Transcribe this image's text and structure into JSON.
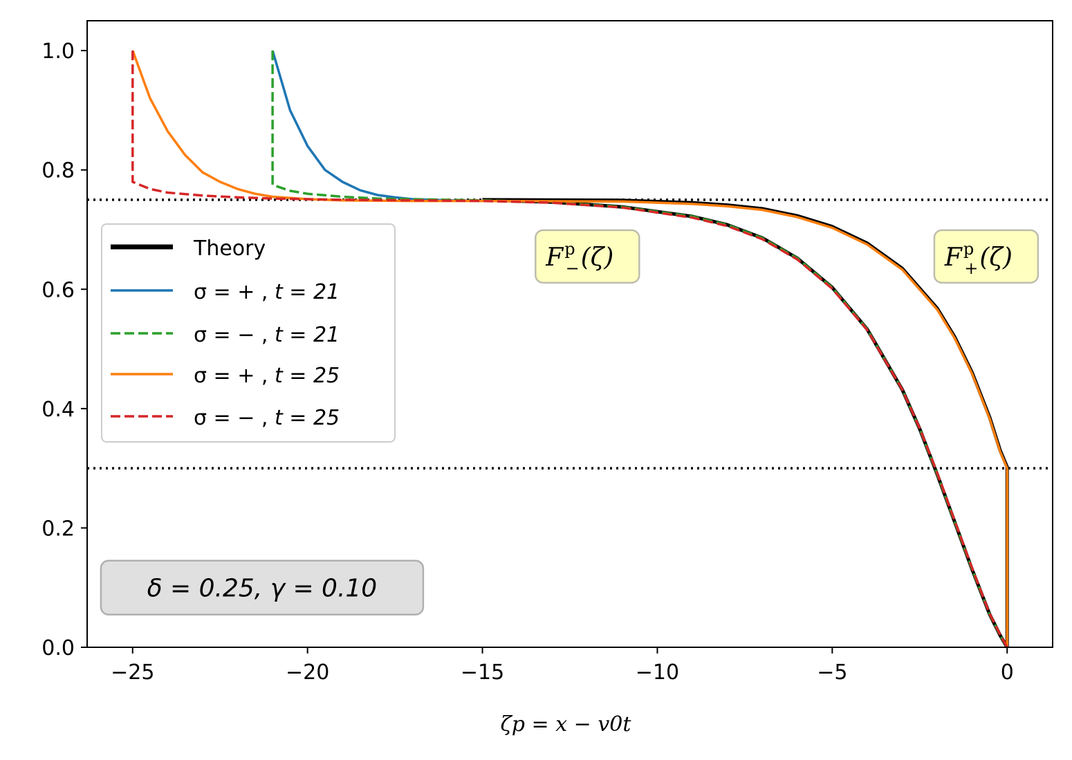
{
  "chart_data": {
    "type": "line",
    "title": "",
    "xlabel": "ζp = x − v0t",
    "ylabel": "",
    "xlim": [
      -26.3,
      1.3
    ],
    "ylim": [
      0.0,
      1.05
    ],
    "xticks": [
      -25,
      -20,
      -15,
      -10,
      -5,
      0
    ],
    "xtick_labels": [
      "−25",
      "−20",
      "−15",
      "−10",
      "−5",
      "0"
    ],
    "yticks": [
      0.0,
      0.2,
      0.4,
      0.6,
      0.8,
      1.0
    ],
    "ytick_labels": [
      "0.0",
      "0.2",
      "0.4",
      "0.6",
      "0.8",
      "1.0"
    ],
    "grid": false,
    "legend_position": "center-left",
    "hlines": [
      {
        "y": 0.75,
        "style": "dotted",
        "color": "#000000"
      },
      {
        "y": 0.3,
        "style": "dotted",
        "color": "#000000"
      }
    ],
    "series": [
      {
        "name": "Theory",
        "legend_label": "Theory",
        "color": "#000000",
        "dash": "solid",
        "weight": "thick",
        "segments": [
          {
            "x": [
              -15,
              -13,
              -11,
              -9,
              -8,
              -7,
              -6,
              -5,
              -4,
              -3,
              -2.5,
              -2,
              -1.5,
              -1,
              -0.5,
              -0.2,
              0
            ],
            "y": [
              0.75,
              0.746,
              0.738,
              0.722,
              0.708,
              0.686,
              0.652,
              0.603,
              0.533,
              0.432,
              0.366,
              0.29,
              0.21,
              0.13,
              0.055,
              0.02,
              0.0
            ]
          },
          {
            "x": [
              -15,
              -11,
              -9,
              -8,
              -7,
              -6,
              -5,
              -4,
              -3,
              -2,
              -1.5,
              -1,
              -0.5,
              -0.2,
              0,
              0,
              0
            ],
            "y": [
              0.75,
              0.749,
              0.745,
              0.741,
              0.735,
              0.723,
              0.705,
              0.677,
              0.635,
              0.568,
              0.52,
              0.46,
              0.385,
              0.33,
              0.302,
              0.15,
              0.0
            ]
          }
        ]
      },
      {
        "name": "sigma-plus-t21",
        "legend_prefix": "σ = + , ",
        "legend_t": "t = 21",
        "color": "#1f77b4",
        "dash": "solid",
        "weight": "normal",
        "segments": [
          {
            "x": [
              -21,
              -20.5,
              -20,
              -19.5,
              -19,
              -18.5,
              -18,
              -17.5,
              -17,
              -16,
              -15
            ],
            "y": [
              1.0,
              0.9,
              0.84,
              0.8,
              0.78,
              0.766,
              0.758,
              0.754,
              0.751,
              0.749,
              0.748
            ]
          }
        ]
      },
      {
        "name": "sigma-minus-t21",
        "legend_prefix": "σ = − , ",
        "legend_t": "t = 21",
        "color": "#2ca02c",
        "dash": "dashed",
        "weight": "normal",
        "segments": [
          {
            "x": [
              -21,
              -21,
              -20.5,
              -20,
              -19,
              -18,
              -17,
              -16,
              -15,
              -13,
              -11,
              -9,
              -8,
              -7,
              -6,
              -5,
              -4,
              -3,
              -2.5,
              -2,
              -1.5,
              -1,
              -0.5,
              -0.2,
              0
            ],
            "y": [
              1.0,
              0.775,
              0.765,
              0.76,
              0.755,
              0.752,
              0.751,
              0.75,
              0.749,
              0.746,
              0.738,
              0.722,
              0.708,
              0.686,
              0.652,
              0.603,
              0.533,
              0.432,
              0.366,
              0.29,
              0.21,
              0.13,
              0.055,
              0.02,
              0.0
            ]
          }
        ]
      },
      {
        "name": "sigma-plus-t25",
        "legend_prefix": "σ = + , ",
        "legend_t": "t = 25",
        "color": "#ff7f0e",
        "dash": "solid",
        "weight": "normal",
        "segments": [
          {
            "x": [
              -25,
              -24.5,
              -24,
              -23.5,
              -23,
              -22.5,
              -22,
              -21.5,
              -21,
              -20,
              -19,
              -17,
              -15,
              -11,
              -9,
              -8,
              -7,
              -6,
              -5,
              -4,
              -3,
              -2,
              -1.5,
              -1,
              -0.5,
              -0.2,
              0,
              0,
              0
            ],
            "y": [
              1.0,
              0.92,
              0.865,
              0.825,
              0.796,
              0.78,
              0.768,
              0.76,
              0.755,
              0.751,
              0.749,
              0.748,
              0.748,
              0.747,
              0.743,
              0.739,
              0.733,
              0.721,
              0.703,
              0.675,
              0.633,
              0.566,
              0.518,
              0.458,
              0.383,
              0.328,
              0.3,
              0.15,
              0.0
            ]
          }
        ]
      },
      {
        "name": "sigma-minus-t25",
        "legend_prefix": "σ = − , ",
        "legend_t": "t = 25",
        "color": "#d62728",
        "dash": "dashed",
        "weight": "normal",
        "segments": [
          {
            "x": [
              -25,
              -25,
              -24.5,
              -24,
              -23,
              -22,
              -21,
              -20,
              -19,
              -17,
              -15,
              -13,
              -11,
              -9,
              -8,
              -7,
              -6,
              -5,
              -4,
              -3,
              -2.5,
              -2,
              -1.5,
              -1,
              -0.5,
              -0.2,
              0
            ],
            "y": [
              1.0,
              0.78,
              0.768,
              0.762,
              0.757,
              0.754,
              0.752,
              0.751,
              0.75,
              0.749,
              0.748,
              0.745,
              0.737,
              0.72,
              0.706,
              0.684,
              0.65,
              0.601,
              0.532,
              0.432,
              0.367,
              0.292,
              0.212,
              0.132,
              0.056,
              0.021,
              0.0
            ]
          }
        ]
      }
    ],
    "annotations": [
      {
        "label_main": "F",
        "label_sup": "p",
        "label_sub": "−",
        "label_arg": "(ζ)",
        "x": -12.0,
        "y": 0.655,
        "bg": "#ffffc0"
      },
      {
        "label_main": "F",
        "label_sup": "p",
        "label_sub": "+",
        "label_arg": "(ζ)",
        "x": -0.6,
        "y": 0.655,
        "bg": "#ffffc0"
      }
    ],
    "param_box": {
      "text": "δ = 0.25, γ = 0.10",
      "bg": "#e0e0e0",
      "x": -21.3,
      "y": 0.1
    }
  }
}
